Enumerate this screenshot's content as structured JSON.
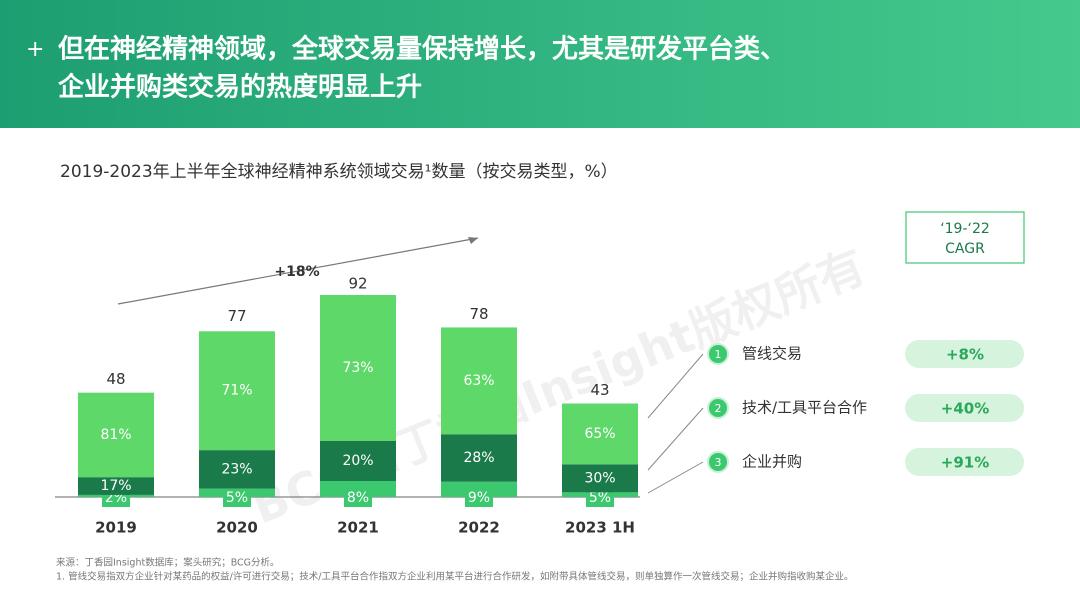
{
  "header": {
    "title_lines": [
      "但在神经精神领域，全球交易量保持增长，尤其是研发平台类、",
      "企业并购类交易的热度明显上升"
    ]
  },
  "chart_data": {
    "type": "bar",
    "title": "2019-2023年上半年全球神经精神系统领域交易¹数量（按交易类型，%）",
    "categories": [
      "2019",
      "2020",
      "2021",
      "2022",
      "2023 1H"
    ],
    "values": [
      48,
      77,
      92,
      78,
      43
    ],
    "series": [
      {
        "name": "管线交易",
        "index": 1,
        "cagr": "+8%",
        "color": "#5fd86a",
        "values": [
          81,
          71,
          73,
          63,
          65
        ],
        "value_labels": [
          "81%",
          "71%",
          "73%",
          "63%",
          "65%"
        ]
      },
      {
        "name": "技术/工具平台合作",
        "index": 2,
        "cagr": "+40%",
        "color": "#1b7a4a",
        "values": [
          17,
          23,
          20,
          28,
          30
        ],
        "value_labels": [
          "17%",
          "23%",
          "20%",
          "28%",
          "30%"
        ]
      },
      {
        "name": "企业并购",
        "index": 3,
        "cagr": "+91%",
        "color": "#3cc86e",
        "values": [
          2,
          5,
          8,
          9,
          5
        ],
        "value_labels": [
          "2%",
          "5%",
          "8%",
          "9%",
          "5%"
        ]
      }
    ],
    "growth_annotation": "+18%",
    "cagr_header": [
      "‘19-‘22",
      "CAGR"
    ],
    "watermark": "BCG和丁香园Insight版权所有"
  },
  "footnotes": [
    "来源：丁香园Insight数据库；案头研究；BCG分析。",
    "1. 管线交易指双方企业针对某药品的权益/许可进行交易；技术/工具平台合作指双方企业利用某平台进行合作研发，如附带具体管线交易，则单独算作一次管线交易；企业并购指收购某企业。"
  ]
}
